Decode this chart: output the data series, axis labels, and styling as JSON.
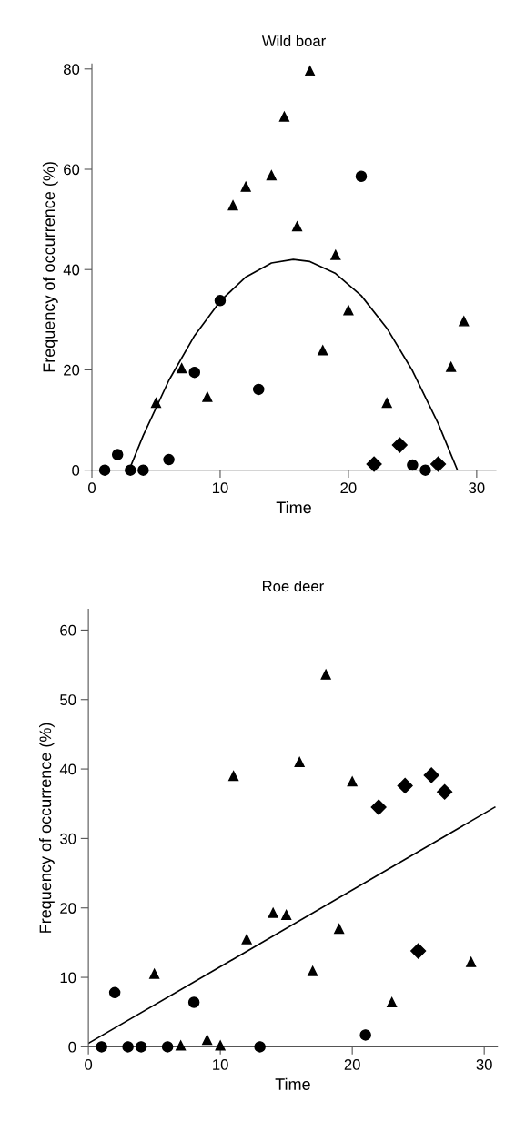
{
  "chart_data": [
    {
      "type": "scatter",
      "title": "Wild boar",
      "xlabel": "Time",
      "ylabel": "Frequency of occurrence (%)",
      "xlim": [
        0,
        31.5
      ],
      "ylim": [
        0,
        81
      ],
      "xticks": [
        0,
        10,
        20,
        30
      ],
      "yticks": [
        0,
        20,
        40,
        60,
        80
      ],
      "series": [
        {
          "type": "scatter",
          "marker": "circle",
          "color": "#000000",
          "x": [
            1,
            2,
            3,
            4,
            6,
            8,
            10,
            13,
            21,
            25,
            26
          ],
          "values": [
            0,
            3.1,
            0,
            0,
            2.1,
            19.5,
            33.8,
            16.1,
            58.6,
            1,
            0
          ]
        },
        {
          "type": "scatter",
          "marker": "triangle",
          "color": "#000000",
          "x": [
            5,
            7,
            9,
            11,
            12,
            14,
            15,
            16,
            17,
            18,
            19,
            20,
            23,
            28,
            29
          ],
          "values": [
            13.4,
            20.3,
            14.6,
            52.8,
            56.5,
            58.8,
            70.5,
            48.6,
            79.6,
            23.9,
            42.9,
            31.9,
            13.4,
            20.6,
            29.7
          ]
        },
        {
          "type": "scatter",
          "marker": "diamond",
          "color": "#000000",
          "x": [
            22,
            24,
            27
          ],
          "values": [
            1.2,
            5,
            1.2
          ]
        },
        {
          "type": "line",
          "color": "#000000",
          "x": [
            2.9,
            4,
            6,
            8,
            10,
            12,
            14,
            15.7,
            17,
            19,
            21,
            23,
            25,
            27,
            28.5
          ],
          "values": [
            0,
            6.9,
            17.9,
            26.8,
            33.7,
            38.5,
            41.3,
            42.0,
            41.6,
            39.2,
            34.8,
            28.3,
            19.8,
            9.3,
            0
          ]
        }
      ]
    },
    {
      "type": "scatter",
      "title": "Roe deer",
      "xlabel": "Time",
      "ylabel": "Frequency of occurrence (%)",
      "xlim": [
        0,
        31
      ],
      "ylim": [
        0,
        63
      ],
      "xticks": [
        0,
        10,
        20,
        30
      ],
      "yticks": [
        0,
        10,
        20,
        30,
        40,
        50,
        60
      ],
      "series": [
        {
          "type": "scatter",
          "marker": "circle",
          "color": "#000000",
          "x": [
            1,
            2,
            3,
            4,
            6,
            8,
            13,
            21
          ],
          "values": [
            0,
            7.8,
            0,
            0,
            0,
            6.4,
            0,
            1.7
          ]
        },
        {
          "type": "scatter",
          "marker": "triangle",
          "color": "#000000",
          "x": [
            5,
            7,
            9,
            10,
            11,
            12,
            14,
            15,
            16,
            17,
            18,
            19,
            20,
            23,
            29
          ],
          "values": [
            10.5,
            0.2,
            1.0,
            0.2,
            39.0,
            15.5,
            19.3,
            19.0,
            41.0,
            10.9,
            53.6,
            17.0,
            38.2,
            6.4,
            12.2
          ]
        },
        {
          "type": "scatter",
          "marker": "diamond",
          "color": "#000000",
          "x": [
            22,
            24,
            25,
            26,
            27
          ],
          "values": [
            34.5,
            37.6,
            13.8,
            39.1,
            36.7
          ]
        },
        {
          "type": "line",
          "color": "#000000",
          "x": [
            0,
            30.8
          ],
          "values": [
            0.5,
            34.5
          ]
        }
      ]
    }
  ]
}
